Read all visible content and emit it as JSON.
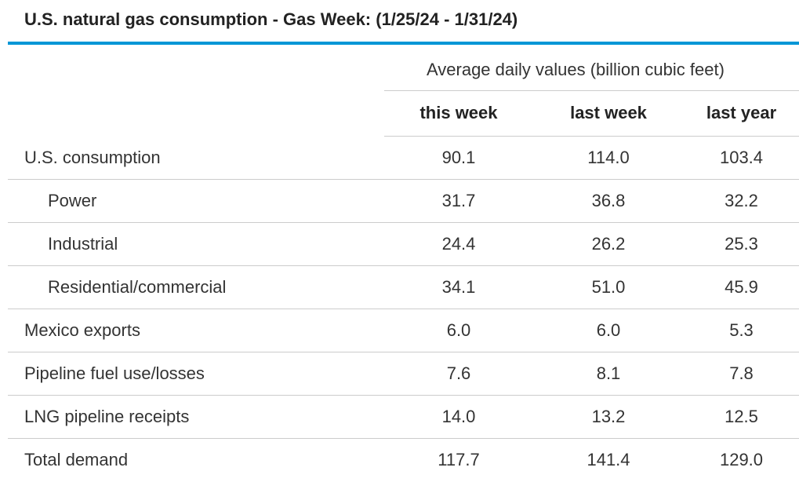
{
  "title": "U.S. natural gas consumption - Gas Week: (1/25/24 - 1/31/24)",
  "units_label": "Average daily values (billion cubic feet)",
  "columns": [
    "this week",
    "last week",
    "last year"
  ],
  "rows": [
    {
      "label": "U.S. consumption",
      "values": [
        "90.1",
        "114.0",
        "103.4"
      ]
    },
    {
      "label": "Power",
      "values": [
        "31.7",
        "36.8",
        "32.2"
      ]
    },
    {
      "label": "Industrial",
      "values": [
        "24.4",
        "26.2",
        "25.3"
      ]
    },
    {
      "label": "Residential/commercial",
      "values": [
        "34.1",
        "51.0",
        "45.9"
      ]
    },
    {
      "label": "Mexico exports",
      "values": [
        "6.0",
        "6.0",
        "5.3"
      ]
    },
    {
      "label": "Pipeline fuel use/losses",
      "values": [
        "7.6",
        "8.1",
        "7.8"
      ]
    },
    {
      "label": "LNG pipeline receipts",
      "values": [
        "14.0",
        "13.2",
        "12.5"
      ]
    },
    {
      "label": "Total demand",
      "values": [
        "117.7",
        "141.4",
        "129.0"
      ]
    }
  ],
  "colors": {
    "accent": "#0096d6",
    "text": "#333333",
    "divider": "#cccccc"
  }
}
